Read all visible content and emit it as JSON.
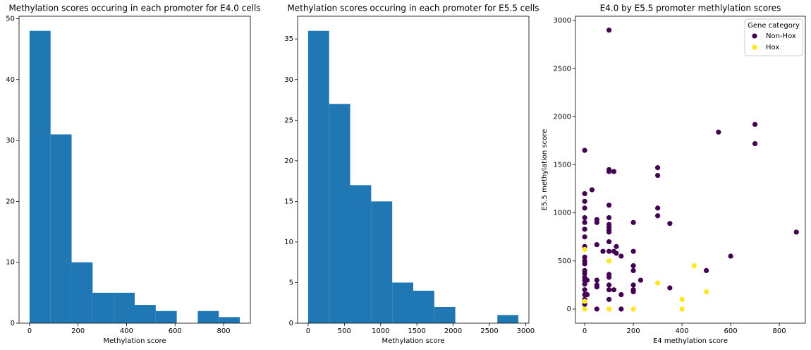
{
  "chart_data": [
    {
      "type": "histogram",
      "title": "Methylation scores occuring in each promoter for E4.0 cells",
      "xlabel": "Methylation score",
      "color": "#1f77b4",
      "bins": [
        0,
        86.7,
        173.4,
        260.1,
        346.8,
        433.5,
        520.2,
        606.9,
        693.6,
        780.3,
        867
      ],
      "values": [
        48,
        31,
        10,
        5,
        5,
        3,
        2,
        0,
        2,
        1
      ],
      "xlim": [
        -43.35,
        910.35
      ],
      "xticks": [
        0,
        200,
        400,
        600,
        800
      ],
      "ylim": [
        0,
        50.4
      ],
      "yticks": [
        0,
        10,
        20,
        30,
        40,
        50
      ]
    },
    {
      "type": "histogram",
      "title": "Methylation scores occuring in each promoter for E5.5 cells",
      "xlabel": "Methylation score",
      "color": "#1f77b4",
      "bins": [
        0,
        290,
        580,
        870,
        1160,
        1450,
        1740,
        2030,
        2320,
        2610,
        2900
      ],
      "values": [
        36,
        27,
        17,
        15,
        5,
        4,
        2,
        0,
        0,
        1
      ],
      "xlim": [
        -145,
        3045
      ],
      "xticks": [
        0,
        500,
        1000,
        1500,
        2000,
        2500,
        3000
      ],
      "ylim": [
        0,
        37.8
      ],
      "yticks": [
        0,
        5,
        10,
        15,
        20,
        25,
        30,
        35
      ]
    },
    {
      "type": "scatter",
      "title": "E4.0 by E5.5 promoter methlylation scores",
      "xlabel": "E4 methylation score",
      "ylabel": "E5.5 methylation score",
      "legend_title": "Gene category",
      "legend": "upper right",
      "series": [
        {
          "name": "Non-Hox",
          "color": "#440154",
          "x": [
            0,
            0,
            0,
            0,
            0,
            0,
            0,
            0,
            0,
            0,
            0,
            0,
            0,
            0,
            0,
            0,
            0,
            0,
            0,
            0,
            0,
            30,
            10,
            10,
            50,
            50,
            50,
            50,
            50,
            50,
            50,
            75,
            100,
            100,
            100,
            100,
            100,
            100,
            100,
            100,
            100,
            100,
            100,
            100,
            100,
            100,
            100,
            100,
            120,
            120,
            120,
            130,
            130,
            150,
            150,
            150,
            200,
            200,
            200,
            200,
            200,
            200,
            200,
            230,
            300,
            300,
            300,
            300,
            350,
            350,
            500,
            550,
            600,
            700,
            700,
            870
          ],
          "values": [
            1650,
            1200,
            1120,
            1050,
            950,
            900,
            830,
            750,
            650,
            540,
            500,
            470,
            400,
            370,
            330,
            300,
            260,
            200,
            150,
            100,
            50,
            1240,
            300,
            150,
            930,
            900,
            670,
            300,
            250,
            230,
            0,
            600,
            2900,
            1450,
            1430,
            1080,
            950,
            880,
            850,
            820,
            800,
            700,
            600,
            360,
            330,
            250,
            200,
            100,
            1430,
            600,
            200,
            650,
            580,
            550,
            150,
            0,
            900,
            600,
            450,
            400,
            250,
            200,
            180,
            300,
            1470,
            1390,
            1050,
            970,
            890,
            220,
            400,
            1840,
            550,
            1920,
            1720,
            800
          ]
        },
        {
          "name": "Hox",
          "color": "#fde725",
          "x": [
            0,
            0,
            0,
            100,
            100,
            200,
            300,
            400,
            400,
            450,
            500
          ],
          "values": [
            620,
            0,
            80,
            500,
            0,
            0,
            270,
            100,
            0,
            450,
            180
          ]
        }
      ],
      "xlim": [
        -38,
        907
      ],
      "xticks": [
        0,
        200,
        400,
        600,
        800
      ],
      "ylim": [
        -147,
        3045
      ],
      "yticks": [
        0,
        500,
        1000,
        1500,
        2000,
        2500,
        3000
      ]
    }
  ]
}
